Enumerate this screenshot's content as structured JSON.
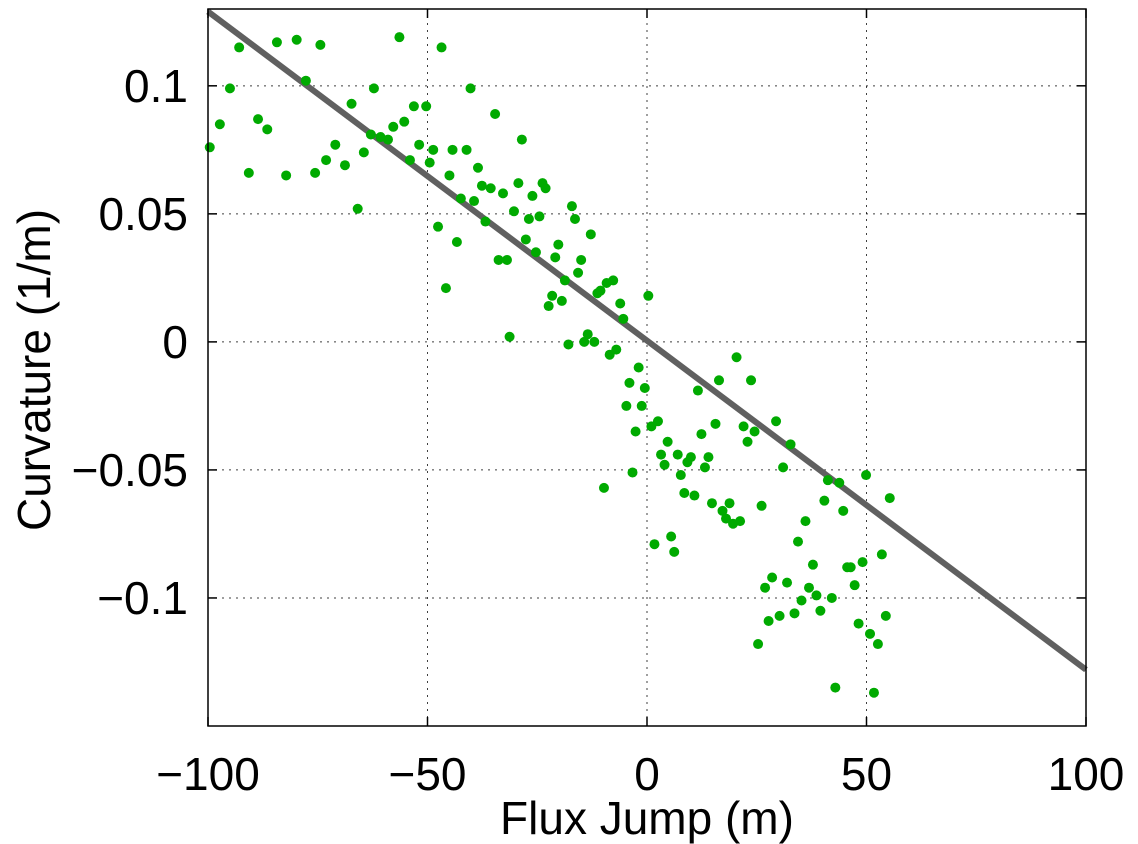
{
  "chart_data": {
    "type": "scatter",
    "title": "",
    "xlabel": "Flux Jump (m)",
    "ylabel": "Curvature (1/m)",
    "xlim": [
      -100,
      100
    ],
    "ylim": [
      -0.15,
      0.13
    ],
    "grid": true,
    "xticks": [
      -100,
      -50,
      0,
      50,
      100
    ],
    "xtick_labels": [
      "−100",
      "−50",
      "0",
      "50",
      "100"
    ],
    "yticks": [
      0.1,
      0.05,
      0,
      -0.05,
      -0.1
    ],
    "ytick_labels": [
      "0.1",
      "0.05",
      "0",
      "−0.05",
      "−0.1"
    ],
    "colors": {
      "points": "#00aa00",
      "fit_line": "#606060"
    },
    "fit_line": {
      "x": [
        -100,
        100
      ],
      "y": [
        0.129,
        -0.128
      ]
    },
    "points": [
      [
        -99.6,
        0.076
      ],
      [
        -97.3,
        0.085
      ],
      [
        -95.0,
        0.099
      ],
      [
        -92.9,
        0.115
      ],
      [
        -90.7,
        0.066
      ],
      [
        -88.6,
        0.087
      ],
      [
        -86.5,
        0.083
      ],
      [
        -84.3,
        0.117
      ],
      [
        -82.2,
        0.065
      ],
      [
        -79.8,
        0.118
      ],
      [
        -77.7,
        0.102
      ],
      [
        -75.6,
        0.066
      ],
      [
        -74.4,
        0.116
      ],
      [
        -73.1,
        0.071
      ],
      [
        -71.0,
        0.077
      ],
      [
        -68.8,
        0.069
      ],
      [
        -67.3,
        0.093
      ],
      [
        -65.9,
        0.052
      ],
      [
        -64.5,
        0.074
      ],
      [
        -62.9,
        0.081
      ],
      [
        -62.2,
        0.099
      ],
      [
        -60.7,
        0.08
      ],
      [
        -59.0,
        0.079
      ],
      [
        -57.8,
        0.084
      ],
      [
        -56.4,
        0.119
      ],
      [
        -55.3,
        0.086
      ],
      [
        -54.0,
        0.071
      ],
      [
        -53.1,
        0.092
      ],
      [
        -51.9,
        0.077
      ],
      [
        -50.3,
        0.092
      ],
      [
        -49.5,
        0.07
      ],
      [
        -48.7,
        0.075
      ],
      [
        -47.6,
        0.045
      ],
      [
        -46.8,
        0.115
      ],
      [
        -45.8,
        0.021
      ],
      [
        -45.0,
        0.065
      ],
      [
        -44.3,
        0.075
      ],
      [
        -43.3,
        0.039
      ],
      [
        -42.4,
        0.056
      ],
      [
        -41.1,
        0.075
      ],
      [
        -40.2,
        0.099
      ],
      [
        -39.4,
        0.055
      ],
      [
        -38.5,
        0.068
      ],
      [
        -37.6,
        0.061
      ],
      [
        -36.8,
        0.047
      ],
      [
        -35.6,
        0.06
      ],
      [
        -34.6,
        0.089
      ],
      [
        -33.8,
        0.032
      ],
      [
        -32.8,
        0.058
      ],
      [
        -31.9,
        0.032
      ],
      [
        -31.3,
        0.002
      ],
      [
        -30.3,
        0.051
      ],
      [
        -29.3,
        0.062
      ],
      [
        -28.5,
        0.079
      ],
      [
        -27.6,
        0.04
      ],
      [
        -26.9,
        0.048
      ],
      [
        -26.1,
        0.057
      ],
      [
        -25.3,
        0.035
      ],
      [
        -24.5,
        0.049
      ],
      [
        -23.8,
        0.062
      ],
      [
        -23.1,
        0.06
      ],
      [
        -22.4,
        0.014
      ],
      [
        -21.6,
        0.018
      ],
      [
        -20.9,
        0.033
      ],
      [
        -20.2,
        0.038
      ],
      [
        -19.4,
        0.016
      ],
      [
        -18.7,
        0.024
      ],
      [
        -17.9,
        -0.001
      ],
      [
        -17.1,
        0.053
      ],
      [
        -16.4,
        0.048
      ],
      [
        -15.7,
        0.027
      ],
      [
        -15.0,
        0.032
      ],
      [
        -14.3,
        0.0
      ],
      [
        -13.5,
        0.003
      ],
      [
        -12.8,
        0.042
      ],
      [
        -12.0,
        0.0
      ],
      [
        -11.3,
        0.019
      ],
      [
        -10.6,
        0.02
      ],
      [
        -9.8,
        -0.057
      ],
      [
        -9.2,
        0.023
      ],
      [
        -8.5,
        -0.005
      ],
      [
        -7.7,
        0.024
      ],
      [
        -7.0,
        -0.003
      ],
      [
        -6.1,
        0.015
      ],
      [
        -5.4,
        0.009
      ],
      [
        -4.7,
        -0.025
      ],
      [
        -4.0,
        -0.016
      ],
      [
        -3.3,
        -0.051
      ],
      [
        -2.6,
        -0.035
      ],
      [
        -1.9,
        -0.01
      ],
      [
        -1.2,
        -0.025
      ],
      [
        -0.5,
        -0.018
      ],
      [
        0.3,
        0.018
      ],
      [
        1.0,
        -0.033
      ],
      [
        1.7,
        -0.079
      ],
      [
        2.5,
        -0.031
      ],
      [
        3.2,
        -0.044
      ],
      [
        4.0,
        -0.048
      ],
      [
        4.7,
        -0.039
      ],
      [
        5.5,
        -0.076
      ],
      [
        6.2,
        -0.082
      ],
      [
        7.0,
        -0.044
      ],
      [
        7.7,
        -0.052
      ],
      [
        8.5,
        -0.059
      ],
      [
        9.2,
        -0.047
      ],
      [
        10.0,
        -0.045
      ],
      [
        10.8,
        -0.06
      ],
      [
        11.6,
        -0.019
      ],
      [
        12.4,
        -0.036
      ],
      [
        13.2,
        -0.049
      ],
      [
        14.0,
        -0.045
      ],
      [
        14.8,
        -0.063
      ],
      [
        15.6,
        -0.032
      ],
      [
        16.4,
        -0.015
      ],
      [
        17.2,
        -0.066
      ],
      [
        18.0,
        -0.069
      ],
      [
        18.8,
        -0.063
      ],
      [
        19.6,
        -0.071
      ],
      [
        20.4,
        -0.006
      ],
      [
        21.2,
        -0.07
      ],
      [
        22.0,
        -0.033
      ],
      [
        22.9,
        -0.039
      ],
      [
        23.7,
        -0.015
      ],
      [
        24.5,
        -0.035
      ],
      [
        25.3,
        -0.118
      ],
      [
        26.1,
        -0.064
      ],
      [
        26.9,
        -0.096
      ],
      [
        27.7,
        -0.109
      ],
      [
        28.5,
        -0.092
      ],
      [
        29.4,
        -0.031
      ],
      [
        30.2,
        -0.107
      ],
      [
        31.0,
        -0.049
      ],
      [
        31.9,
        -0.094
      ],
      [
        32.7,
        -0.04
      ],
      [
        33.6,
        -0.106
      ],
      [
        34.4,
        -0.078
      ],
      [
        35.2,
        -0.101
      ],
      [
        36.1,
        -0.07
      ],
      [
        36.9,
        -0.096
      ],
      [
        37.8,
        -0.087
      ],
      [
        38.6,
        -0.099
      ],
      [
        39.5,
        -0.105
      ],
      [
        40.4,
        -0.062
      ],
      [
        41.2,
        -0.054
      ],
      [
        42.1,
        -0.1
      ],
      [
        42.9,
        -0.135
      ],
      [
        43.8,
        -0.055
      ],
      [
        44.7,
        -0.066
      ],
      [
        45.6,
        -0.088
      ],
      [
        46.4,
        -0.088
      ],
      [
        47.3,
        -0.095
      ],
      [
        48.2,
        -0.11
      ],
      [
        49.1,
        -0.086
      ],
      [
        49.9,
        -0.052
      ],
      [
        50.8,
        -0.114
      ],
      [
        51.7,
        -0.137
      ],
      [
        52.6,
        -0.118
      ],
      [
        53.5,
        -0.083
      ],
      [
        54.4,
        -0.107
      ],
      [
        55.3,
        -0.061
      ]
    ]
  }
}
